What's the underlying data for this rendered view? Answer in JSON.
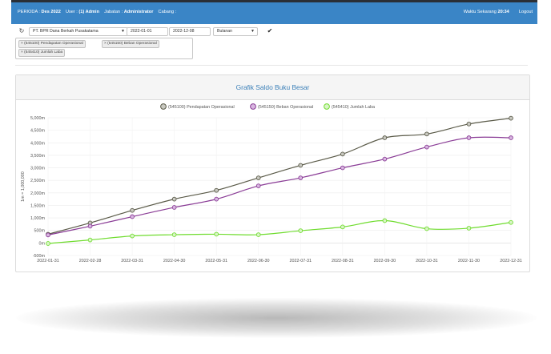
{
  "topbar": {
    "periode_label": "PERIODA :",
    "periode_value": "Des 2022",
    "user_label": "User :",
    "user_value": "(1) Admin",
    "jabatan_label": "Jabatan :",
    "jabatan_value": "Administrator",
    "cabang_label": "Cabang :",
    "cabang_value": "",
    "waktu_label": "Waktu Sekarang",
    "waktu_value": "20:34",
    "logout_label": "Logout"
  },
  "filters": {
    "company": "PT. BPR Dana Berkah Pusakatama",
    "date_from": "2022-01-01",
    "date_to": "2022-12-08",
    "interval": "Bulanan",
    "accounts": [
      "(545100) Pendapatan Operasional",
      "(545150) Beban Operasional",
      "(545410) Jumlah Laba"
    ]
  },
  "panel": {
    "title": "Grafik Saldo Buku Besar"
  },
  "chart_data": {
    "type": "line",
    "title": "",
    "xlabel": "",
    "ylabel": "1m = 1,000,000",
    "ylim": [
      -500,
      5000
    ],
    "yticks": [
      -500,
      0,
      500,
      1000,
      1500,
      2000,
      2500,
      3000,
      3500,
      4000,
      4500,
      5000
    ],
    "ytick_labels": [
      "-500m",
      "0m",
      "500m",
      "1,000m",
      "1,500m",
      "2,000m",
      "2,500m",
      "3,000m",
      "3,500m",
      "4,000m",
      "4,500m",
      "5,000m"
    ],
    "categories": [
      "2022-01-31",
      "2022-02-28",
      "2022-03-31",
      "2022-04-30",
      "2022-05-31",
      "2022-06-30",
      "2022-07-31",
      "2022-08-31",
      "2022-09-30",
      "2022-10-31",
      "2022-11-30",
      "2022-12-31"
    ],
    "legend_position": "top-center",
    "series": [
      {
        "name": "(545100) Pendapatan Operasional",
        "color": "#5a5a48",
        "fill": "#c8c8c0",
        "values": [
          350,
          800,
          1300,
          1750,
          2100,
          2600,
          3100,
          3550,
          4200,
          4350,
          4750,
          4980
        ]
      },
      {
        "name": "(545150) Beban Operasional",
        "color": "#8a3c96",
        "fill": "#d8b6e0",
        "values": [
          320,
          670,
          1050,
          1420,
          1750,
          2280,
          2600,
          3000,
          3350,
          3830,
          4200,
          4200
        ]
      },
      {
        "name": "(545410) Jumlah Laba",
        "color": "#6fdc2e",
        "fill": "#d9f5c6",
        "values": [
          -20,
          120,
          280,
          330,
          350,
          330,
          490,
          640,
          890,
          570,
          590,
          820
        ]
      }
    ]
  }
}
